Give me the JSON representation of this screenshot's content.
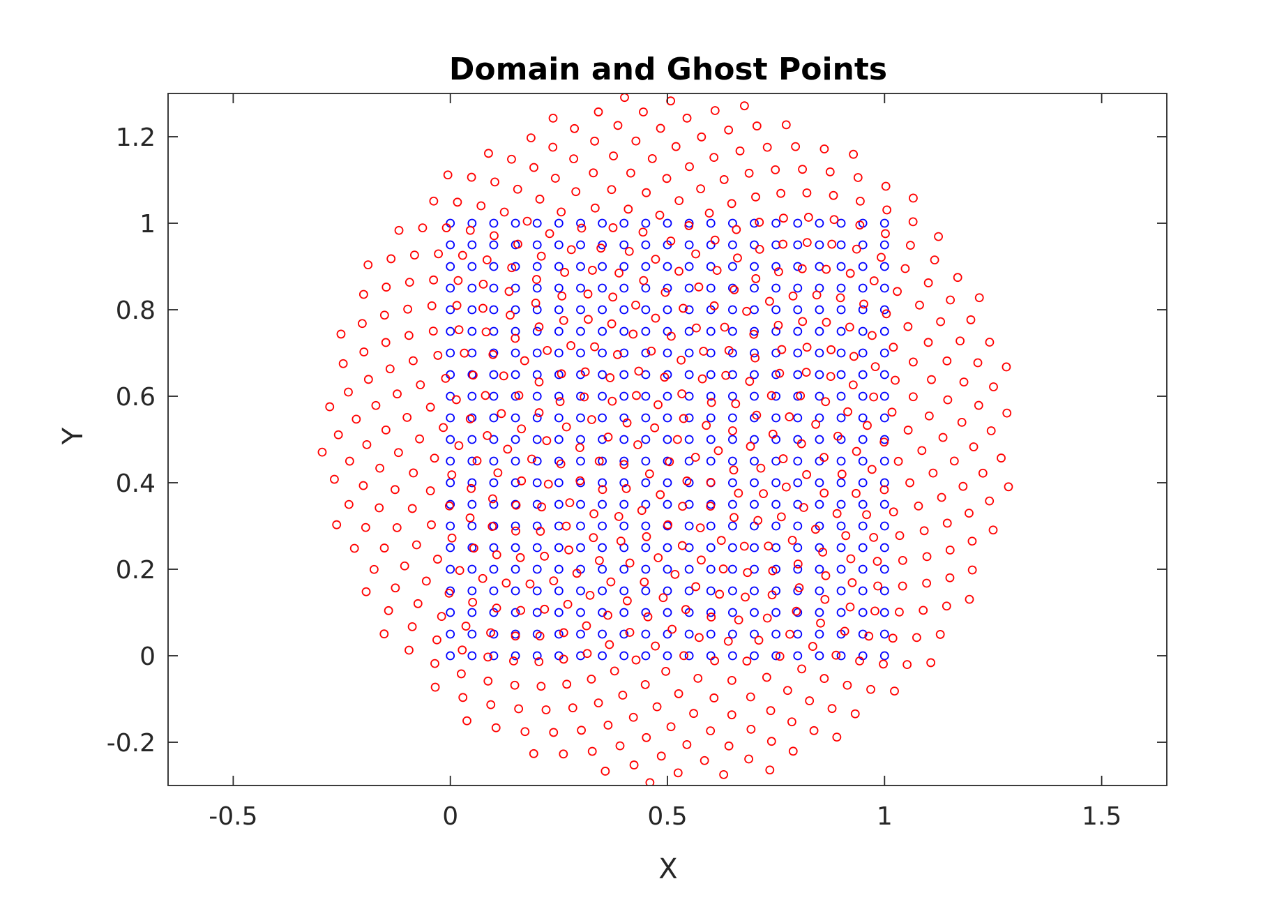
{
  "chart_data": {
    "type": "scatter",
    "title": "Domain and Ghost Points",
    "xlabel": "X",
    "ylabel": "Y",
    "xlim": [
      -0.65,
      1.65
    ],
    "ylim": [
      -0.3,
      1.3
    ],
    "xticks": [
      -0.5,
      0,
      0.5,
      1,
      1.5
    ],
    "xtick_labels": [
      "-0.5",
      "0",
      "0.5",
      "1",
      "1.5"
    ],
    "yticks": [
      -0.2,
      0,
      0.2,
      0.4,
      0.6,
      0.8,
      1,
      1.2
    ],
    "ytick_labels": [
      "-0.2",
      "0",
      "0.2",
      "0.4",
      "0.6",
      "0.8",
      "1",
      "1.2"
    ],
    "grid": false,
    "legend": "none",
    "colors": {
      "domain": "#0000ff",
      "ghost": "#ff0000",
      "axes": "#262626"
    },
    "series": [
      {
        "marker": "o",
        "color": "#0000ff",
        "grid_x": [
          0,
          1,
          0.05
        ],
        "grid_y": [
          0,
          1,
          0.05
        ],
        "count": 441
      },
      {
        "marker": "o",
        "color": "#ff0000",
        "distribution": "sunflower",
        "center": [
          0.5,
          0.5
        ],
        "radius": 0.8,
        "count": 600
      }
    ]
  }
}
